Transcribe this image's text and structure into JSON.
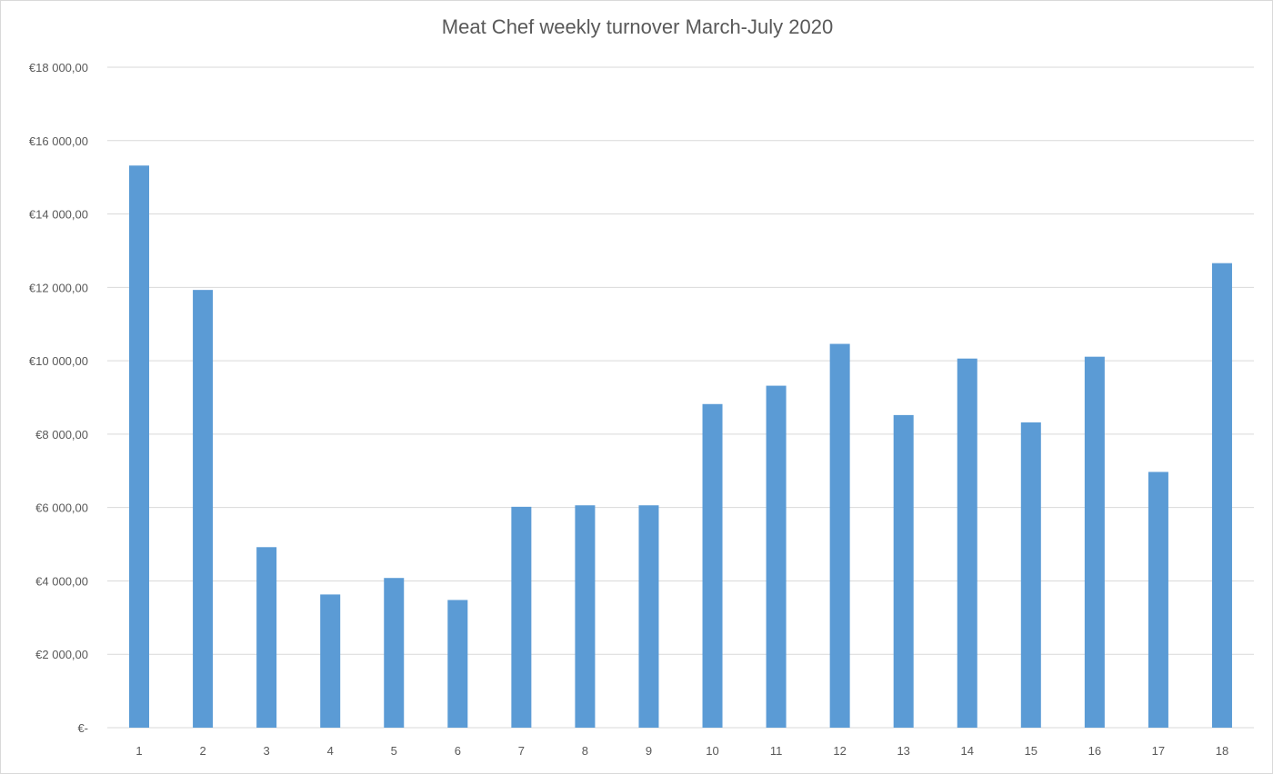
{
  "chart_data": {
    "type": "bar",
    "title": "Meat Chef weekly turnover March-July 2020",
    "xlabel": "",
    "ylabel": "",
    "categories": [
      "1",
      "2",
      "3",
      "4",
      "5",
      "6",
      "7",
      "8",
      "9",
      "10",
      "11",
      "12",
      "13",
      "14",
      "15",
      "16",
      "17",
      "18"
    ],
    "values": [
      15320,
      11930,
      4920,
      3630,
      4080,
      3480,
      6020,
      6060,
      6060,
      8820,
      9320,
      10460,
      8520,
      10060,
      8320,
      10110,
      6970,
      12660
    ],
    "ylim": [
      0,
      18000
    ],
    "yticks": [
      0,
      2000,
      4000,
      6000,
      8000,
      10000,
      12000,
      14000,
      16000,
      18000
    ],
    "ytick_labels": [
      "€-",
      "€2 000,00",
      "€4 000,00",
      "€6 000,00",
      "€8 000,00",
      "€10 000,00",
      "€12 000,00",
      "€14 000,00",
      "€16 000,00",
      "€18 000,00"
    ],
    "grid": true,
    "legend": "none",
    "bar_color": "#5b9bd5",
    "grid_color": "#d9d9d9"
  }
}
